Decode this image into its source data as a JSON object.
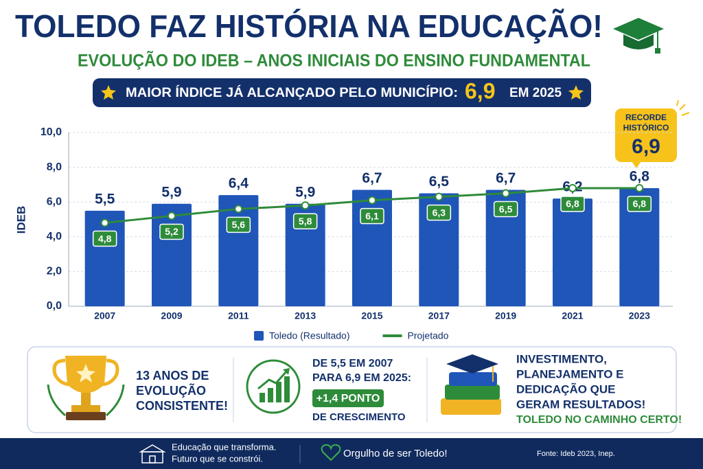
{
  "chart_data": {
    "type": "bar",
    "title": "TOLEDO FAZ HISTÓRIA NA EDUCAÇÃO!",
    "subtitle": "EVOLUÇÃO DO IDEB – ANOS INICIAIS DO ENSINO FUNDAMENTAL",
    "y_label": "IDEB",
    "categories": [
      "2007",
      "2009",
      "2011",
      "2013",
      "2015",
      "2017",
      "2019",
      "2021",
      "2023"
    ],
    "series": [
      {
        "name": "Toledo (Resultado)",
        "type": "bar",
        "color": "#1f56b8",
        "values": [
          5.5,
          5.9,
          6.4,
          5.9,
          6.7,
          6.5,
          6.7,
          6.2,
          6.8
        ],
        "value_labels": [
          "5,5",
          "5,9",
          "6,4",
          "5,9",
          "6,7",
          "6,5",
          "6,7",
          "6,2",
          "6,8"
        ]
      },
      {
        "name": "Projetado",
        "type": "line",
        "color": "#2e8b3a",
        "values": [
          4.8,
          5.2,
          5.6,
          5.8,
          6.1,
          6.3,
          6.5,
          6.8,
          6.8
        ],
        "value_labels": [
          "4,8",
          "5,2",
          "5,6",
          "5,8",
          "6,1",
          "6,3",
          "6,5",
          "6,8",
          "6,8"
        ]
      }
    ],
    "ylim": [
      0,
      10
    ],
    "yticks": [
      {
        "value": 0,
        "label": "0,0"
      },
      {
        "value": 2,
        "label": "2,0"
      },
      {
        "value": 4,
        "label": "4,0"
      },
      {
        "value": 6,
        "label": "6,0"
      },
      {
        "value": 8,
        "label": "8,0"
      },
      {
        "value": 10,
        "label": "10,0"
      }
    ],
    "grid": true,
    "annotation": {
      "lines": [
        "RECORDE",
        "HISTÓRICO"
      ],
      "value": "6,9"
    }
  },
  "highlight": {
    "text": "MAIOR ÍNDICE JÁ ALCANÇADO PELO MUNICÍPIO:",
    "value": "6,9",
    "suffix": "EM 2025"
  },
  "panels": [
    {
      "lines": [
        "13 ANOS DE",
        "EVOLUÇÃO",
        "CONSISTENTE!"
      ]
    },
    {
      "lines": [
        "DE 5,5 EM 2007",
        "PARA 6,9 EM 2025:"
      ],
      "badge": "+1,4 PONTO",
      "footer": "DE CRESCIMENTO"
    },
    {
      "lines": [
        "INVESTIMENTO,",
        "PLANEJAMENTO E",
        "DEDICAÇÃO QUE",
        "GERAM RESULTADOS!"
      ],
      "tagline": "TOLEDO NO CAMINHO CERTO!"
    }
  ],
  "footer": {
    "motto": [
      "Educação que transforma.",
      "Futuro que se constrói."
    ],
    "pride": "Orgulho de ser Toledo!",
    "source": "Fonte: Ideb 2023, Inep."
  }
}
